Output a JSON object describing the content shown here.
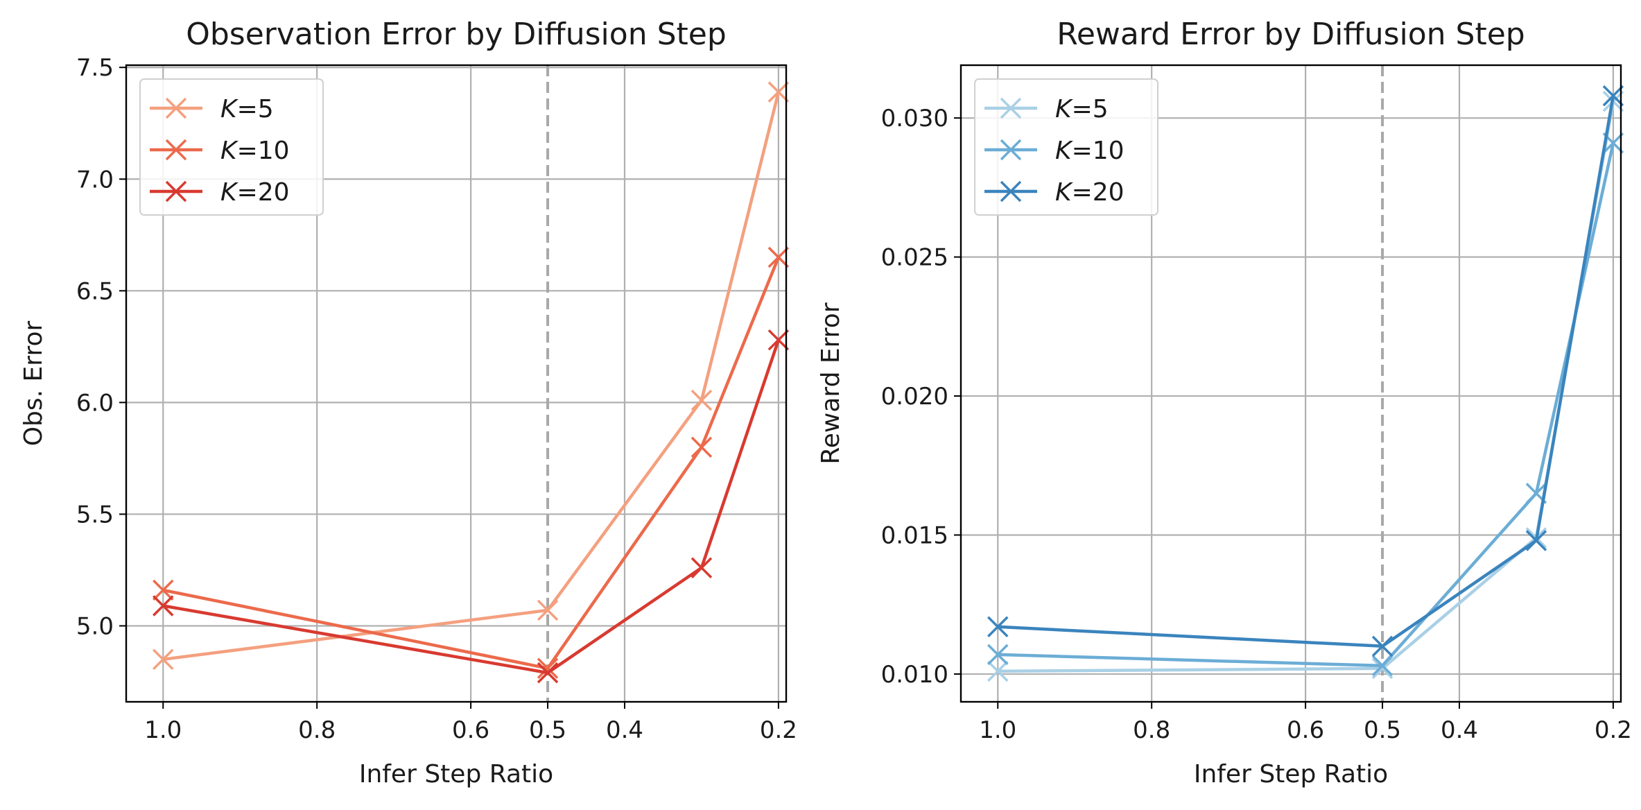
{
  "chart_data": [
    {
      "type": "line",
      "title": "Observation Error by Diffusion Step",
      "xlabel": "Infer Step Ratio",
      "ylabel": "Obs. Error",
      "x": [
        1.0,
        0.5,
        0.3,
        0.2
      ],
      "xlim": [
        1.048,
        0.19
      ],
      "ylim": [
        4.66,
        7.51
      ],
      "xticks": [
        "1.0",
        "0.8",
        "0.6",
        "0.5",
        "0.4",
        "0.2"
      ],
      "yticks": [
        "5.0",
        "5.5",
        "6.0",
        "6.5",
        "7.0",
        "7.5"
      ],
      "vline": 0.5,
      "grid": true,
      "legend_position": "top-left",
      "series": [
        {
          "name": "K=5",
          "legend_k": "K",
          "legend_v": "=5",
          "color": "#f4a07f",
          "values": [
            4.85,
            5.07,
            6.01,
            7.39
          ]
        },
        {
          "name": "K=10",
          "legend_k": "K",
          "legend_v": "=10",
          "color": "#ec6a4b",
          "values": [
            5.16,
            4.81,
            5.8,
            6.65
          ]
        },
        {
          "name": "K=20",
          "legend_k": "K",
          "legend_v": "=20",
          "color": "#d83a30",
          "values": [
            5.09,
            4.79,
            5.26,
            6.28
          ]
        }
      ]
    },
    {
      "type": "line",
      "title": "Reward Error by Diffusion Step",
      "xlabel": "Infer Step Ratio",
      "ylabel": "Reward Error",
      "x": [
        1.0,
        0.5,
        0.3,
        0.2
      ],
      "xlim": [
        1.048,
        0.19
      ],
      "ylim": [
        0.009,
        0.0319
      ],
      "xticks": [
        "1.0",
        "0.8",
        "0.6",
        "0.5",
        "0.4",
        "0.2"
      ],
      "yticks": [
        "0.010",
        "0.015",
        "0.020",
        "0.025",
        "0.030"
      ],
      "vline": 0.5,
      "grid": true,
      "legend_position": "top-left",
      "series": [
        {
          "name": "K=5",
          "legend_k": "K",
          "legend_v": "=5",
          "color": "#a9d0e6",
          "values": [
            0.0101,
            0.0102,
            0.0149,
            0.0306
          ]
        },
        {
          "name": "K=10",
          "legend_k": "K",
          "legend_v": "=10",
          "color": "#6badd6",
          "values": [
            0.0107,
            0.0103,
            0.0165,
            0.0291
          ]
        },
        {
          "name": "K=20",
          "legend_k": "K",
          "legend_v": "=20",
          "color": "#3a84bd",
          "values": [
            0.0117,
            0.011,
            0.0148,
            0.0308
          ]
        }
      ]
    }
  ]
}
